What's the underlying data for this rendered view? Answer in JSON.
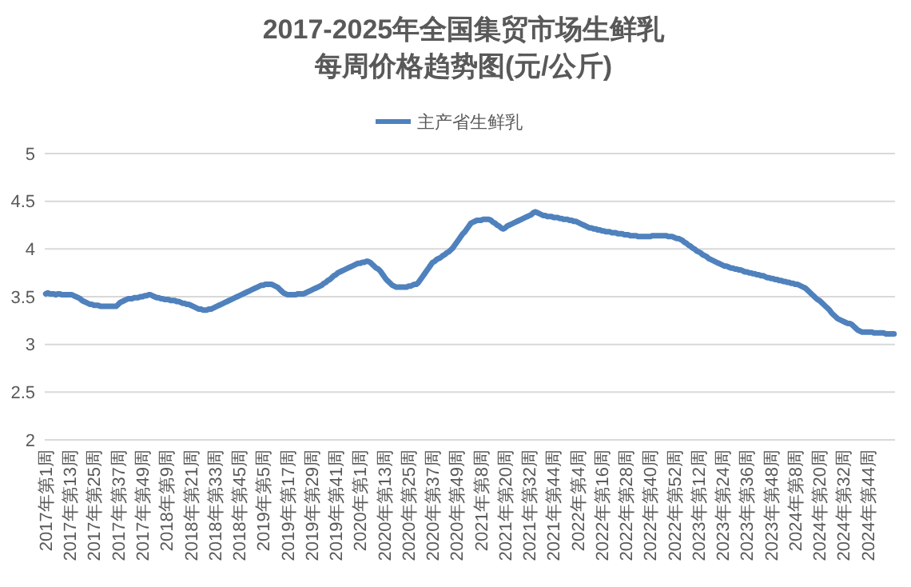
{
  "chart_data": {
    "type": "line",
    "title": "2017-2025年全国集贸市场生鲜乳每周价格趋势图(元/公斤)",
    "categories": [
      "2017年第1周",
      null,
      null,
      null,
      null,
      null,
      null,
      null,
      null,
      null,
      null,
      null,
      "2017年第13周",
      null,
      null,
      null,
      null,
      null,
      null,
      null,
      null,
      null,
      null,
      null,
      "2017年第25周",
      null,
      null,
      null,
      null,
      null,
      null,
      null,
      null,
      null,
      null,
      null,
      "2017年第37周",
      null,
      null,
      null,
      null,
      null,
      null,
      null,
      null,
      null,
      null,
      null,
      "2017年第49周",
      null,
      null,
      null,
      null,
      null,
      null,
      null,
      null,
      null,
      null,
      null,
      "2018年第9周",
      null,
      null,
      null,
      null,
      null,
      null,
      null,
      null,
      null,
      null,
      null,
      "2018年第21周",
      null,
      null,
      null,
      null,
      null,
      null,
      null,
      null,
      null,
      null,
      null,
      "2018年第33周",
      null,
      null,
      null,
      null,
      null,
      null,
      null,
      null,
      null,
      null,
      null,
      "2018年第45周",
      null,
      null,
      null,
      null,
      null,
      null,
      null,
      null,
      null,
      null,
      null,
      "2019年第5周",
      null,
      null,
      null,
      null,
      null,
      null,
      null,
      null,
      null,
      null,
      null,
      "2019年第17周",
      null,
      null,
      null,
      null,
      null,
      null,
      null,
      null,
      null,
      null,
      null,
      "2019年第29周",
      null,
      null,
      null,
      null,
      null,
      null,
      null,
      null,
      null,
      null,
      null,
      "2019年第41周",
      null,
      null,
      null,
      null,
      null,
      null,
      null,
      null,
      null,
      null,
      null,
      "2020年第1周",
      null,
      null,
      null,
      null,
      null,
      null,
      null,
      null,
      null,
      null,
      null,
      "2020年第13周",
      null,
      null,
      null,
      null,
      null,
      null,
      null,
      null,
      null,
      null,
      null,
      "2020年第25周",
      null,
      null,
      null,
      null,
      null,
      null,
      null,
      null,
      null,
      null,
      null,
      "2020年第37周",
      null,
      null,
      null,
      null,
      null,
      null,
      null,
      null,
      null,
      null,
      null,
      "2020年第49周",
      null,
      null,
      null,
      null,
      null,
      null,
      null,
      null,
      null,
      null,
      null,
      "2021年第8周",
      null,
      null,
      null,
      null,
      null,
      null,
      null,
      null,
      null,
      null,
      null,
      "2021年第20周",
      null,
      null,
      null,
      null,
      null,
      null,
      null,
      null,
      null,
      null,
      null,
      "2021年第32周",
      null,
      null,
      null,
      null,
      null,
      null,
      null,
      null,
      null,
      null,
      null,
      "2021年第44周",
      null,
      null,
      null,
      null,
      null,
      null,
      null,
      null,
      null,
      null,
      null,
      "2022年第4周",
      null,
      null,
      null,
      null,
      null,
      null,
      null,
      null,
      null,
      null,
      null,
      "2022年第16周",
      null,
      null,
      null,
      null,
      null,
      null,
      null,
      null,
      null,
      null,
      null,
      "2022年第28周",
      null,
      null,
      null,
      null,
      null,
      null,
      null,
      null,
      null,
      null,
      null,
      "2022年第40周",
      null,
      null,
      null,
      null,
      null,
      null,
      null,
      null,
      null,
      null,
      null,
      "2022年第52周",
      null,
      null,
      null,
      null,
      null,
      null,
      null,
      null,
      null,
      null,
      null,
      "2023年第12周",
      null,
      null,
      null,
      null,
      null,
      null,
      null,
      null,
      null,
      null,
      null,
      "2023年第24周",
      null,
      null,
      null,
      null,
      null,
      null,
      null,
      null,
      null,
      null,
      null,
      "2023年第36周",
      null,
      null,
      null,
      null,
      null,
      null,
      null,
      null,
      null,
      null,
      null,
      "2023年第48周",
      null,
      null,
      null,
      null,
      null,
      null,
      null,
      null,
      null,
      null,
      null,
      "2024年第8周",
      null,
      null,
      null,
      null,
      null,
      null,
      null,
      null,
      null,
      null,
      null,
      "2024年第20周",
      null,
      null,
      null,
      null,
      null,
      null,
      null,
      null,
      null,
      null,
      null,
      "2024年第32周",
      null,
      null,
      null,
      null,
      null,
      null,
      null,
      null,
      null,
      null,
      null,
      "2024年第44周",
      null,
      null,
      null,
      null,
      null,
      null,
      null,
      null,
      null,
      null,
      null,
      null,
      null
    ],
    "series": [
      {
        "name": "主产省生鲜乳",
        "color": "#4f81bd",
        "values": [
          3.53,
          3.54,
          3.53,
          3.53,
          3.53,
          3.52,
          3.53,
          3.53,
          3.52,
          3.52,
          3.52,
          3.52,
          3.52,
          3.52,
          3.51,
          3.5,
          3.49,
          3.48,
          3.46,
          3.45,
          3.44,
          3.43,
          3.42,
          3.42,
          3.41,
          3.41,
          3.41,
          3.4,
          3.4,
          3.4,
          3.4,
          3.4,
          3.4,
          3.4,
          3.4,
          3.4,
          3.42,
          3.44,
          3.45,
          3.46,
          3.47,
          3.48,
          3.48,
          3.48,
          3.49,
          3.49,
          3.49,
          3.5,
          3.5,
          3.51,
          3.51,
          3.52,
          3.52,
          3.51,
          3.5,
          3.49,
          3.49,
          3.48,
          3.48,
          3.47,
          3.47,
          3.47,
          3.46,
          3.46,
          3.46,
          3.45,
          3.45,
          3.44,
          3.43,
          3.43,
          3.42,
          3.42,
          3.41,
          3.4,
          3.39,
          3.38,
          3.37,
          3.37,
          3.36,
          3.36,
          3.36,
          3.37,
          3.37,
          3.38,
          3.39,
          3.4,
          3.41,
          3.42,
          3.43,
          3.44,
          3.45,
          3.46,
          3.47,
          3.48,
          3.49,
          3.5,
          3.51,
          3.52,
          3.53,
          3.54,
          3.55,
          3.56,
          3.57,
          3.58,
          3.59,
          3.6,
          3.61,
          3.62,
          3.62,
          3.63,
          3.63,
          3.63,
          3.63,
          3.62,
          3.61,
          3.6,
          3.58,
          3.56,
          3.54,
          3.53,
          3.52,
          3.52,
          3.52,
          3.52,
          3.52,
          3.53,
          3.53,
          3.53,
          3.53,
          3.54,
          3.55,
          3.56,
          3.57,
          3.58,
          3.59,
          3.6,
          3.61,
          3.62,
          3.64,
          3.65,
          3.67,
          3.68,
          3.7,
          3.72,
          3.73,
          3.75,
          3.76,
          3.77,
          3.78,
          3.79,
          3.8,
          3.81,
          3.82,
          3.83,
          3.84,
          3.85,
          3.85,
          3.86,
          3.86,
          3.87,
          3.87,
          3.86,
          3.84,
          3.82,
          3.8,
          3.79,
          3.77,
          3.74,
          3.71,
          3.68,
          3.66,
          3.64,
          3.62,
          3.61,
          3.6,
          3.6,
          3.6,
          3.6,
          3.6,
          3.6,
          3.61,
          3.61,
          3.62,
          3.63,
          3.63,
          3.65,
          3.68,
          3.71,
          3.74,
          3.77,
          3.8,
          3.83,
          3.86,
          3.87,
          3.89,
          3.9,
          3.91,
          3.93,
          3.94,
          3.96,
          3.97,
          3.99,
          4.01,
          4.04,
          4.07,
          4.1,
          4.13,
          4.16,
          4.18,
          4.21,
          4.24,
          4.27,
          4.28,
          4.29,
          4.3,
          4.3,
          4.3,
          4.31,
          4.31,
          4.31,
          4.31,
          4.3,
          4.28,
          4.27,
          4.25,
          4.24,
          4.22,
          4.21,
          4.22,
          4.24,
          4.25,
          4.26,
          4.27,
          4.28,
          4.29,
          4.3,
          4.31,
          4.32,
          4.33,
          4.34,
          4.35,
          4.36,
          4.38,
          4.39,
          4.38,
          4.37,
          4.36,
          4.35,
          4.35,
          4.34,
          4.34,
          4.34,
          4.33,
          4.33,
          4.33,
          4.32,
          4.32,
          4.31,
          4.31,
          4.31,
          4.3,
          4.3,
          4.29,
          4.29,
          4.28,
          4.27,
          4.26,
          4.25,
          4.24,
          4.23,
          4.22,
          4.22,
          4.21,
          4.21,
          4.2,
          4.2,
          4.19,
          4.19,
          4.18,
          4.18,
          4.18,
          4.17,
          4.17,
          4.17,
          4.16,
          4.16,
          4.16,
          4.15,
          4.15,
          4.15,
          4.14,
          4.14,
          4.14,
          4.14,
          4.13,
          4.13,
          4.13,
          4.13,
          4.13,
          4.13,
          4.13,
          4.14,
          4.14,
          4.14,
          4.14,
          4.14,
          4.14,
          4.14,
          4.14,
          4.13,
          4.13,
          4.13,
          4.12,
          4.11,
          4.11,
          4.1,
          4.09,
          4.07,
          4.06,
          4.04,
          4.03,
          4.01,
          4.0,
          3.98,
          3.97,
          3.96,
          3.94,
          3.93,
          3.92,
          3.9,
          3.89,
          3.88,
          3.87,
          3.86,
          3.85,
          3.84,
          3.83,
          3.82,
          3.82,
          3.81,
          3.8,
          3.8,
          3.79,
          3.79,
          3.78,
          3.78,
          3.77,
          3.76,
          3.76,
          3.75,
          3.75,
          3.74,
          3.74,
          3.73,
          3.73,
          3.72,
          3.72,
          3.71,
          3.7,
          3.7,
          3.69,
          3.69,
          3.68,
          3.68,
          3.67,
          3.67,
          3.66,
          3.66,
          3.65,
          3.65,
          3.64,
          3.64,
          3.63,
          3.63,
          3.62,
          3.61,
          3.6,
          3.59,
          3.57,
          3.55,
          3.53,
          3.51,
          3.49,
          3.47,
          3.46,
          3.44,
          3.42,
          3.4,
          3.38,
          3.36,
          3.33,
          3.31,
          3.29,
          3.27,
          3.26,
          3.25,
          3.24,
          3.23,
          3.22,
          3.22,
          3.21,
          3.19,
          3.17,
          3.15,
          3.14,
          3.13,
          3.13,
          3.13,
          3.13,
          3.13,
          3.13,
          3.12,
          3.12,
          3.12,
          3.12,
          3.12,
          3.12,
          3.11,
          3.11,
          3.11,
          3.11,
          3.11
        ]
      }
    ],
    "ylim": [
      2,
      5
    ],
    "yticks": [
      2,
      2.5,
      3,
      3.5,
      4,
      4.5,
      5
    ],
    "grid": "y",
    "legend": "top",
    "line_style": "solid"
  }
}
